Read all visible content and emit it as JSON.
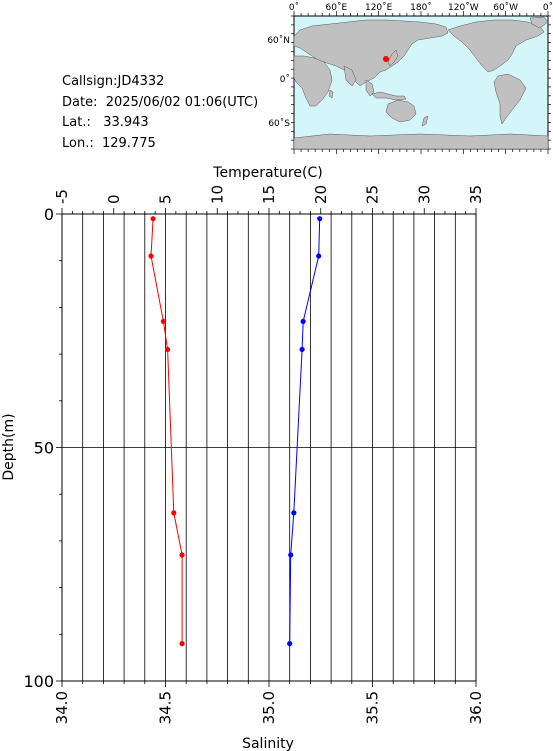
{
  "info": {
    "callsign": "Callsign:JD4332",
    "date": "Date:  2025/06/02 01:06(UTC)",
    "lat": "Lat.:   33.943",
    "lon": "Lon.:  129.775"
  },
  "map": {
    "top_labels": [
      "0˚",
      "60˚E",
      "120˚E",
      "180˚",
      "120˚W",
      "60˚W",
      "0˚"
    ],
    "left_labels": [
      "60˚N",
      "0˚",
      "60˚S"
    ],
    "ocean_color": "#d4f6fb",
    "land_color": "#c0c0c0",
    "marker_color": "#ff0000"
  },
  "chart_data": {
    "type": "line",
    "xlabel_top": "Temperature(C)",
    "xlabel_bottom": "Salinity",
    "ylabel": "Depth(m)",
    "temperature_ticks": [
      "-5",
      "0",
      "5",
      "10",
      "15",
      "20",
      "25",
      "30",
      "35"
    ],
    "salinity_ticks": [
      "34.0",
      "34.5",
      "35.0",
      "35.5",
      "36.0"
    ],
    "depth_ticks": [
      "0",
      "50",
      "100"
    ],
    "temperature_range": [
      -5,
      35
    ],
    "salinity_range": [
      34.0,
      36.0
    ],
    "depth_range": [
      0,
      100
    ],
    "grid": true,
    "series": [
      {
        "color": "#ff0000",
        "axis": "salinity",
        "points": [
          {
            "depth": 1,
            "value": 34.44
          },
          {
            "depth": 9,
            "value": 34.43
          },
          {
            "depth": 23,
            "value": 34.49
          },
          {
            "depth": 29,
            "value": 34.51
          },
          {
            "depth": 64,
            "value": 34.54
          },
          {
            "depth": 73,
            "value": 34.58
          },
          {
            "depth": 92,
            "value": 34.58
          }
        ]
      },
      {
        "color": "#0000ff",
        "axis": "temperature",
        "points": [
          {
            "depth": 1,
            "value": 19.9
          },
          {
            "depth": 9,
            "value": 19.8
          },
          {
            "depth": 23,
            "value": 18.3
          },
          {
            "depth": 29,
            "value": 18.2
          },
          {
            "depth": 64,
            "value": 17.4
          },
          {
            "depth": 73,
            "value": 17.1
          },
          {
            "depth": 92,
            "value": 17.0
          }
        ]
      }
    ]
  }
}
